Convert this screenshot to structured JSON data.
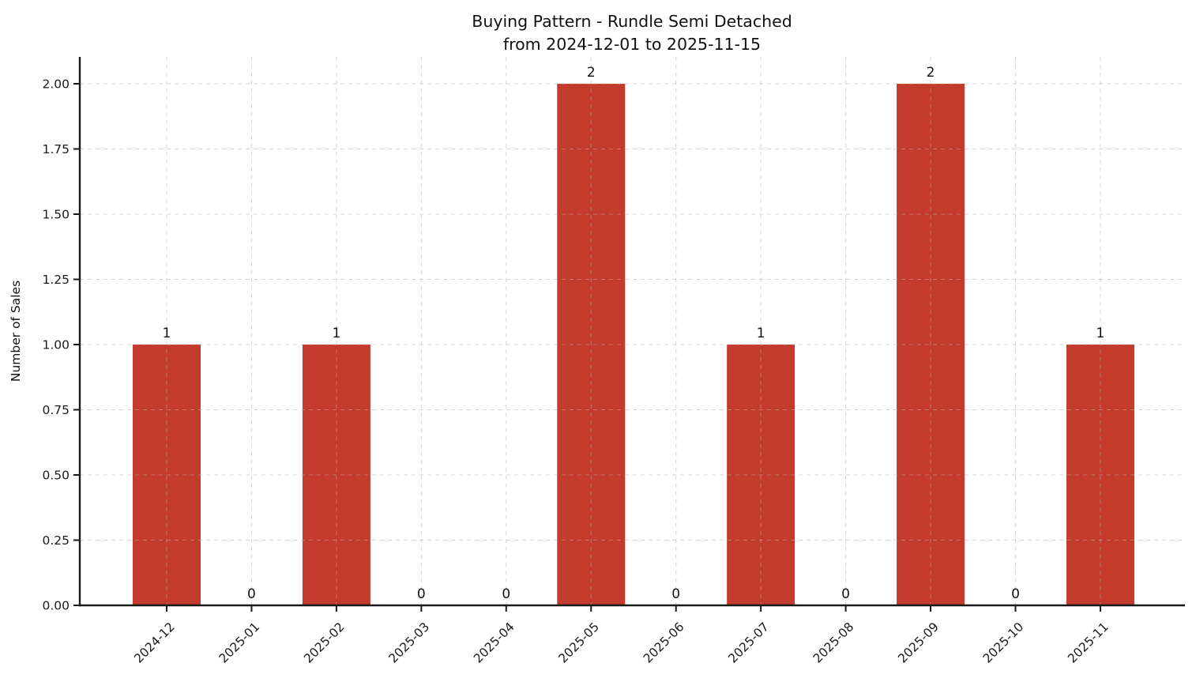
{
  "chart_data": {
    "type": "bar",
    "title": "Buying Pattern - Rundle Semi Detached",
    "subtitle": "from 2024-12-01 to 2025-11-15",
    "ylabel": "Number of Sales",
    "xlabel": "",
    "categories": [
      "2024-12",
      "2025-01",
      "2025-02",
      "2025-03",
      "2025-04",
      "2025-05",
      "2025-06",
      "2025-07",
      "2025-08",
      "2025-09",
      "2025-10",
      "2025-11"
    ],
    "values": [
      1,
      0,
      1,
      0,
      0,
      2,
      0,
      1,
      0,
      2,
      0,
      1
    ],
    "bar_value_labels": [
      "1",
      "0",
      "1",
      "0",
      "0",
      "2",
      "0",
      "1",
      "0",
      "2",
      "0",
      "1"
    ],
    "yticks": [
      0,
      0.25,
      0.5,
      0.75,
      1,
      1.25,
      1.5,
      1.75,
      2
    ],
    "ytick_labels": [
      "0.00",
      "0.25",
      "0.50",
      "0.75",
      "1.00",
      "1.25",
      "1.50",
      "1.75",
      "2.00"
    ],
    "ylim": [
      0,
      2.1
    ],
    "grid": true,
    "grid_style": "dashed",
    "legend": "none",
    "colors": {
      "bar": "#c33b2c",
      "grid": "#b0b0b0",
      "axis": "#1a1a1a",
      "text": "#111111",
      "background": "#ffffff"
    }
  }
}
